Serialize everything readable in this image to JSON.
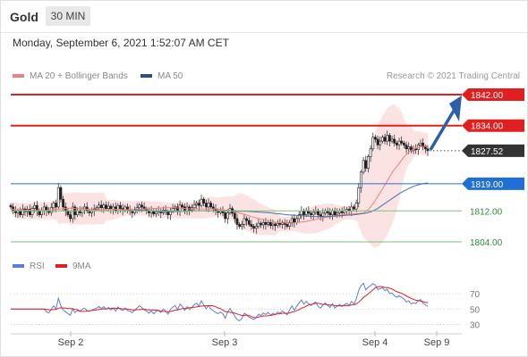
{
  "header": {
    "instrument": "Gold",
    "timeframe": "30 MIN"
  },
  "timestamp": "Monday, September 6, 2021 1:52:07 AM CET",
  "legend": {
    "ma20_label": "MA 20 + Bollinger Bands",
    "ma50_label": "MA 50",
    "copyright": "Research © 2021 Trading Central"
  },
  "rsi_legend": {
    "rsi_label": "RSI",
    "ma9_label": "9MA"
  },
  "colors": {
    "resistance": "#e02020",
    "support": "#3a9a3a",
    "current": "#333333",
    "pivot": "#1f6fd6",
    "ma20": "#f08080",
    "ma50": "#4a6fa5",
    "band_fill": "#fbdada",
    "arrow": "#2c5fa8",
    "rsi": "#5b7fd6",
    "rsi_ma": "#e02020"
  },
  "chart_data": {
    "type": "candlestick",
    "ylim": [
      1802,
      1845
    ],
    "x_ticks": [
      "Sep 2",
      "Sep 3",
      "Sep 4",
      "Sep 9"
    ],
    "levels": [
      {
        "value": 1842.0,
        "label": "1842.00",
        "kind": "resistance"
      },
      {
        "value": 1834.0,
        "label": "1834.00",
        "kind": "resistance"
      },
      {
        "value": 1827.52,
        "label": "1827.52",
        "kind": "current"
      },
      {
        "value": 1819.0,
        "label": "1819.00",
        "kind": "pivot"
      },
      {
        "value": 1812.0,
        "label": "1812.00",
        "kind": "support"
      },
      {
        "value": 1804.0,
        "label": "1804.00",
        "kind": "support"
      }
    ],
    "closes": [
      1813,
      1812,
      1811.5,
      1812,
      1811,
      1812.5,
      1811.8,
      1812.4,
      1811,
      1812.6,
      1813.4,
      1812,
      1811,
      1812,
      1813,
      1812,
      1811.6,
      1812.8,
      1814,
      1813,
      1818,
      1815,
      1813,
      1812,
      1811,
      1810,
      1813,
      1811,
      1812,
      1811.5,
      1812.5,
      1813,
      1812,
      1811.5,
      1812,
      1812.5,
      1812.8,
      1813.5,
      1812.8,
      1813.5,
      1812.6,
      1813.2,
      1812.4,
      1813,
      1812,
      1813.4,
      1812.6,
      1812.2,
      1813,
      1812.2,
      1812,
      1811.5,
      1812.2,
      1812.8,
      1813.5,
      1813,
      1812.5,
      1812,
      1811.5,
      1812,
      1811.2,
      1811.8,
      1812,
      1811.5,
      1812.2,
      1811.8,
      1811,
      1812,
      1812.6,
      1813,
      1812,
      1813.5,
      1813,
      1812,
      1813,
      1812.2,
      1812.8,
      1813.6,
      1814,
      1813.4,
      1815,
      1814,
      1813,
      1814,
      1813,
      1812.5,
      1812,
      1811.6,
      1812,
      1811.5,
      1810,
      1811.5,
      1812.6,
      1811.4,
      1810,
      1808.5,
      1808,
      1808.5,
      1810,
      1809.5,
      1808.5,
      1808,
      1807.5,
      1808,
      1808.8,
      1808.4,
      1809,
      1808.5,
      1809,
      1808.2,
      1808.6,
      1808.2,
      1808.8,
      1808.5,
      1809,
      1808.5,
      1808,
      1809,
      1810,
      1809,
      1810,
      1811,
      1812,
      1811,
      1812,
      1811.4,
      1811,
      1811.6,
      1812,
      1811,
      1810.6,
      1811.4,
      1812,
      1811.5,
      1811,
      1812,
      1811,
      1811.5,
      1812,
      1811.5,
      1812,
      1812.4,
      1812,
      1813,
      1812.5,
      1814,
      1818,
      1822,
      1825,
      1823,
      1826,
      1828,
      1831,
      1830.5,
      1829,
      1830,
      1831,
      1830,
      1831.5,
      1830,
      1830.5,
      1829.5,
      1829,
      1830,
      1829.5,
      1829,
      1828,
      1828.5,
      1827.5,
      1828,
      1827.8,
      1829,
      1829.5,
      1828.5,
      1828,
      1827.52
    ],
    "ma20": [
      1812.5,
      1812.3,
      1812.2,
      1812.2,
      1812.1,
      1812.1,
      1812.1,
      1812.2,
      1812.4,
      1812.6,
      1812.7,
      1812.6,
      1812.5,
      1812.4,
      1812.3,
      1812.3,
      1812.3,
      1812.4,
      1812.4,
      1812.3,
      1812.3,
      1812.3,
      1812.4,
      1812.5,
      1812.6,
      1812.7,
      1812.8,
      1812.8,
      1812.8,
      1812.7,
      1812.6,
      1812.5,
      1812.5,
      1812.5,
      1812.5,
      1812.5,
      1812.3,
      1812.1,
      1811.8,
      1811.4,
      1811,
      1810.5,
      1810.1,
      1809.7,
      1809.4,
      1809.1,
      1808.9,
      1808.9,
      1808.9,
      1809,
      1809.2,
      1809.5,
      1809.8,
      1810.1,
      1810.4,
      1810.7,
      1810.9,
      1811.1,
      1811.2,
      1811.3,
      1811.4,
      1812.5,
      1814.5,
      1817,
      1819.5,
      1822,
      1824,
      1826,
      1827.5,
      1828.2,
      1828.6,
      1828.8
    ],
    "ma50": [
      1812.3,
      1812.2,
      1812.1,
      1812,
      1811.9,
      1811.8,
      1811.8,
      1811.8,
      1811.9,
      1811.9,
      1812,
      1812,
      1812,
      1812,
      1812,
      1812,
      1812,
      1812,
      1811.9,
      1811.9,
      1811.9,
      1811.8,
      1811.7,
      1811.6,
      1811.5,
      1811.3,
      1811.2,
      1811,
      1810.9,
      1810.8,
      1810.7,
      1810.6,
      1810.5,
      1810.5,
      1810.5,
      1810.6,
      1810.7,
      1810.8,
      1810.9,
      1811,
      1811.2,
      1811.4,
      1811.8,
      1812.5,
      1813.5,
      1814.5,
      1815.5,
      1816.5,
      1817.3,
      1818,
      1818.6,
      1819,
      1819.2
    ]
  },
  "rsi_data": {
    "ylim": [
      20,
      90
    ],
    "ticks": [
      "70",
      "50",
      "30"
    ],
    "tick_values": [
      70,
      50,
      30
    ]
  }
}
